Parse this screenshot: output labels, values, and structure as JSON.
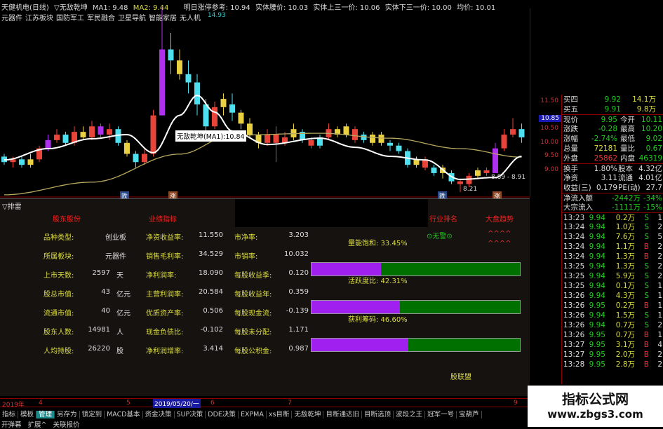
{
  "header": {
    "stock": "天健机电(日线)",
    "indicator": "▽无敌乾坤",
    "ma1": "MA1: 9.48",
    "ma2": "MA2: 9.44",
    "limit_ref": "明日涨停参考: 10.94",
    "body_mid": "实体腰价: 10.03",
    "body_up": "实体上三一价: 10.06",
    "body_down": "实体下三一价: 10.00",
    "avg": "均价: 10.01"
  },
  "tags": [
    "元器件",
    "江苏板块",
    "国防军工",
    "军民融合",
    "卫星导航",
    "智能家居",
    "无人机"
  ],
  "chart": {
    "price_axis": [
      "11.50",
      "10.85",
      "10.50",
      "10.00",
      "9.50",
      "9.00"
    ],
    "price_axis_values": [
      11.5,
      10.85,
      10.5,
      10.0,
      9.5,
      9.0
    ],
    "high_label": "14.93",
    "low_label": "8.21",
    "range_label": "8.89 - 8.91",
    "ma_tip": "无敌乾坤(MA1):10.84",
    "signal_down": "跌",
    "signal_up": "涨",
    "colors": {
      "r": "#e8443a",
      "c": "#4fe0f0",
      "y": "#e8d040",
      "p": "#b030f0",
      "ma1": "#ffffff",
      "ma2": "#b8a860"
    },
    "candles": [
      [
        9.5,
        9.3,
        9.6,
        9.2,
        "c"
      ],
      [
        9.3,
        9.4,
        9.5,
        9.1,
        "r"
      ],
      [
        9.4,
        9.2,
        9.5,
        9.1,
        "c"
      ],
      [
        9.2,
        9.4,
        9.6,
        9.1,
        "y"
      ],
      [
        9.4,
        9.8,
        9.9,
        9.3,
        "r"
      ],
      [
        9.8,
        10.1,
        10.3,
        9.7,
        "p"
      ],
      [
        10.1,
        10.3,
        10.5,
        10.0,
        "r"
      ],
      [
        10.3,
        10.0,
        10.4,
        9.9,
        "c"
      ],
      [
        10.0,
        10.4,
        10.6,
        9.9,
        "r"
      ],
      [
        10.4,
        10.2,
        10.6,
        10.1,
        "y"
      ],
      [
        10.2,
        10.6,
        10.8,
        10.1,
        "r"
      ],
      [
        10.6,
        10.3,
        10.7,
        10.2,
        "p"
      ],
      [
        10.3,
        10.5,
        10.7,
        10.1,
        "r"
      ],
      [
        10.5,
        10.0,
        10.6,
        9.9,
        "c"
      ],
      [
        10.0,
        9.6,
        10.1,
        9.5,
        "y"
      ],
      [
        9.6,
        9.3,
        9.7,
        9.1,
        "c"
      ],
      [
        9.3,
        9.6,
        9.8,
        9.2,
        "r"
      ],
      [
        9.6,
        11.0,
        11.2,
        9.5,
        "r"
      ],
      [
        11.0,
        13.4,
        14.93,
        11.0,
        "p"
      ],
      [
        13.4,
        13.0,
        14.0,
        12.5,
        "c"
      ],
      [
        13.0,
        12.5,
        13.4,
        12.3,
        "y"
      ],
      [
        12.5,
        12.2,
        13.0,
        11.8,
        "c"
      ],
      [
        12.2,
        11.4,
        12.5,
        11.0,
        "c"
      ],
      [
        11.4,
        10.6,
        11.6,
        10.4,
        "c"
      ],
      [
        10.6,
        11.3,
        11.5,
        10.5,
        "r"
      ],
      [
        11.3,
        11.6,
        11.8,
        11.0,
        "y"
      ],
      [
        11.4,
        11.1,
        11.8,
        10.8,
        "c"
      ],
      [
        11.1,
        10.7,
        11.2,
        10.5,
        "y"
      ],
      [
        10.7,
        10.3,
        10.9,
        10.2,
        "y"
      ],
      [
        10.3,
        10.0,
        10.4,
        9.8,
        "y"
      ],
      [
        10.0,
        10.3,
        10.5,
        9.9,
        "r"
      ],
      [
        10.3,
        10.0,
        10.6,
        9.3,
        "r"
      ],
      [
        10.0,
        10.2,
        10.4,
        9.9,
        "r"
      ],
      [
        10.2,
        10.5,
        10.7,
        10.1,
        "y"
      ],
      [
        10.4,
        10.1,
        10.5,
        10.0,
        "c"
      ],
      [
        10.1,
        9.9,
        10.2,
        9.8,
        "r"
      ],
      [
        9.9,
        10.2,
        10.3,
        9.8,
        "c"
      ],
      [
        10.2,
        10.5,
        10.7,
        10.1,
        "r"
      ],
      [
        10.5,
        10.3,
        10.6,
        10.2,
        "y"
      ],
      [
        10.3,
        10.6,
        10.7,
        10.2,
        "y"
      ],
      [
        10.5,
        10.1,
        10.6,
        10.0,
        "r"
      ],
      [
        10.1,
        10.3,
        10.4,
        10.0,
        "c"
      ],
      [
        10.3,
        10.0,
        10.4,
        9.9,
        "y"
      ],
      [
        10.0,
        10.3,
        10.4,
        9.9,
        "y"
      ],
      [
        10.0,
        9.9,
        10.1,
        9.7,
        "c"
      ],
      [
        9.9,
        9.7,
        10.0,
        9.6,
        "c"
      ],
      [
        9.7,
        9.2,
        9.8,
        9.1,
        "c"
      ],
      [
        9.2,
        9.4,
        9.5,
        9.1,
        "y"
      ],
      [
        9.4,
        9.1,
        9.5,
        9.0,
        "r"
      ],
      [
        9.1,
        8.9,
        9.2,
        8.8,
        "c"
      ],
      [
        8.9,
        9.1,
        9.2,
        8.7,
        "y"
      ],
      [
        8.9,
        8.6,
        9.0,
        8.5,
        "c"
      ],
      [
        8.6,
        8.5,
        8.7,
        8.21,
        "r"
      ],
      [
        8.5,
        8.8,
        8.9,
        8.4,
        "r"
      ],
      [
        8.8,
        9.0,
        9.1,
        8.7,
        "y"
      ],
      [
        9.0,
        8.9,
        9.1,
        8.8,
        "r"
      ],
      [
        8.9,
        9.8,
        10.0,
        8.9,
        "p"
      ],
      [
        9.8,
        10.3,
        10.5,
        9.7,
        "r"
      ],
      [
        10.3,
        10.5,
        10.9,
        10.2,
        "r"
      ],
      [
        10.5,
        10.2,
        10.7,
        10.0,
        "c"
      ]
    ],
    "ma1": [
      [
        0,
        9.38
      ],
      [
        5,
        9.79
      ],
      [
        10,
        10.15
      ],
      [
        14,
        10.3
      ],
      [
        17,
        9.64
      ],
      [
        20,
        11.0
      ],
      [
        22,
        11.73
      ],
      [
        24,
        11.12
      ],
      [
        26,
        10.43
      ],
      [
        30,
        9.94
      ],
      [
        36,
        10.17
      ],
      [
        40,
        9.84
      ],
      [
        44,
        9.51
      ],
      [
        48,
        9.38
      ],
      [
        52,
        8.67
      ],
      [
        56,
        8.74
      ],
      [
        59,
        9.51
      ]
    ],
    "ma2": [
      [
        0,
        8.11
      ],
      [
        10,
        8.57
      ],
      [
        20,
        9.59
      ],
      [
        26,
        10.28
      ],
      [
        36,
        10.35
      ],
      [
        44,
        10.17
      ],
      [
        52,
        9.79
      ],
      [
        59,
        9.48
      ]
    ]
  },
  "quote": {
    "bids": [
      {
        "label": "买四",
        "price": "9.92",
        "vol": "14.1万"
      },
      {
        "label": "买五",
        "price": "9.91",
        "vol": "9.8万"
      }
    ],
    "stats": [
      [
        "现价",
        "9.95",
        "今开",
        "10.11"
      ],
      [
        "涨跌",
        "-0.28",
        "最高",
        "10.20"
      ],
      [
        "涨幅",
        "-2.74%",
        "最低",
        "9.02"
      ],
      [
        "总量",
        "72181",
        "量比",
        "0.67"
      ],
      [
        "外盘",
        "25862",
        "内盘",
        "46319"
      ]
    ],
    "stats2": [
      [
        "换手",
        "1.80%",
        "股本",
        "4.32亿"
      ],
      [
        "净资",
        "3.11",
        "流通",
        "4.01亿"
      ],
      [
        "收益(三)",
        "0.179",
        "PE(动)",
        "27.7"
      ]
    ],
    "flows": [
      [
        "净流入额",
        "-2442万",
        "-34%"
      ],
      [
        "大宗流入",
        "-1111万",
        "-15%"
      ]
    ],
    "ticks": [
      [
        "13:23",
        "9.94",
        "0.2万",
        "S",
        "1"
      ],
      [
        "13:24",
        "9.94",
        "1.0万",
        "S",
        "2"
      ],
      [
        "13:24",
        "9.94",
        "7.6万",
        "S",
        "5"
      ],
      [
        "13:24",
        "9.94",
        "1.1万",
        "B",
        "2"
      ],
      [
        "13:24",
        "9.94",
        "1.3万",
        "B",
        "2"
      ],
      [
        "13:25",
        "9.94",
        "1.3万",
        "S",
        "2"
      ],
      [
        "13:25",
        "9.94",
        "5.9万",
        "S",
        "2"
      ],
      [
        "13:25",
        "9.94",
        "0.1万",
        "S",
        "1"
      ],
      [
        "13:26",
        "9.94",
        "4.3万",
        "S",
        "1"
      ],
      [
        "13:26",
        "9.95",
        "0.2万",
        "B",
        "1"
      ],
      [
        "13:26",
        "9.94",
        "1.5万",
        "S",
        "1"
      ],
      [
        "13:26",
        "9.94",
        "0.7万",
        "S",
        "2"
      ],
      [
        "13:26",
        "9.95",
        "0.7万",
        "B",
        "1"
      ],
      [
        "13:27",
        "9.95",
        "3.1万",
        "B",
        "4"
      ],
      [
        "13:27",
        "9.95",
        "2.0万",
        "B",
        "2"
      ],
      [
        "13:28",
        "9.95",
        "2.8万",
        "B",
        "2"
      ]
    ]
  },
  "panel": {
    "title": "▽排雷",
    "headers": [
      "股东股份",
      "业绩指标",
      "行业排名",
      "大盘趋势"
    ],
    "col1": [
      [
        "品种类型:",
        "",
        "创业板",
        "m"
      ],
      [
        "所属板块:",
        "",
        "元器件",
        "g"
      ],
      [
        "上市天数:",
        "2597",
        "天",
        "c"
      ],
      [
        "股总市值:",
        "43",
        "亿元",
        "c"
      ],
      [
        "流通市值:",
        "40",
        "亿元",
        "c"
      ],
      [
        "股东人数:",
        "14981",
        "人",
        "c"
      ],
      [
        "人均持股:",
        "26220",
        "股",
        "c"
      ]
    ],
    "col2": [
      [
        "净资收益率:",
        "11.550"
      ],
      [
        "销售毛利率:",
        "34.529"
      ],
      [
        "净利润率:",
        "18.090"
      ],
      [
        "主营利润率:",
        "20.584"
      ],
      [
        "优质资产率:",
        "0.506"
      ],
      [
        "现金负债比:",
        "-0.102"
      ],
      [
        "净利润增率:",
        "3.414"
      ]
    ],
    "col3": [
      [
        "市净率:",
        "3.203"
      ],
      [
        "市销率:",
        "10.032"
      ],
      [
        "每股收益季:",
        "0.120"
      ],
      [
        "每股收益年:",
        "0.359"
      ],
      [
        "每股现金流:",
        "-0.139"
      ],
      [
        "每股未分配:",
        "1.171"
      ],
      [
        "每股公积金:",
        "0.987"
      ]
    ],
    "bars": [
      {
        "label": "量能饱和: 33.45%",
        "value": 33.45
      },
      {
        "label": "活跃度比: 42.31%",
        "value": 42.31
      },
      {
        "label": "获利筹码: 46.60%",
        "value": 46.6
      }
    ],
    "signal": "⊙无警⊙",
    "trend": [
      "^^^^",
      "^^^^"
    ],
    "footer": "股联盟"
  },
  "timeaxis": {
    "year": "2019年",
    "months": [
      "4",
      "5",
      "6",
      "7",
      "9"
    ],
    "cursor": "2019/05/20/一"
  },
  "toolbar": [
    "指标",
    "模板",
    "管理",
    "另存为",
    "锁定到",
    "MACD基本",
    "资金决策",
    "SUP决策",
    "DDE决策",
    "EXPMA",
    "xs目断",
    "无敌乾坤",
    "目断通达旧",
    "目断选顶",
    "波段之王",
    "冠军一号",
    "宝葫芦"
  ],
  "toolbar_active": 2,
  "footer": [
    "开弹幕",
    "扩展^",
    "关联报价"
  ],
  "watermark": {
    "name": "指标公式网",
    "url": "www.zbgs3.com"
  }
}
